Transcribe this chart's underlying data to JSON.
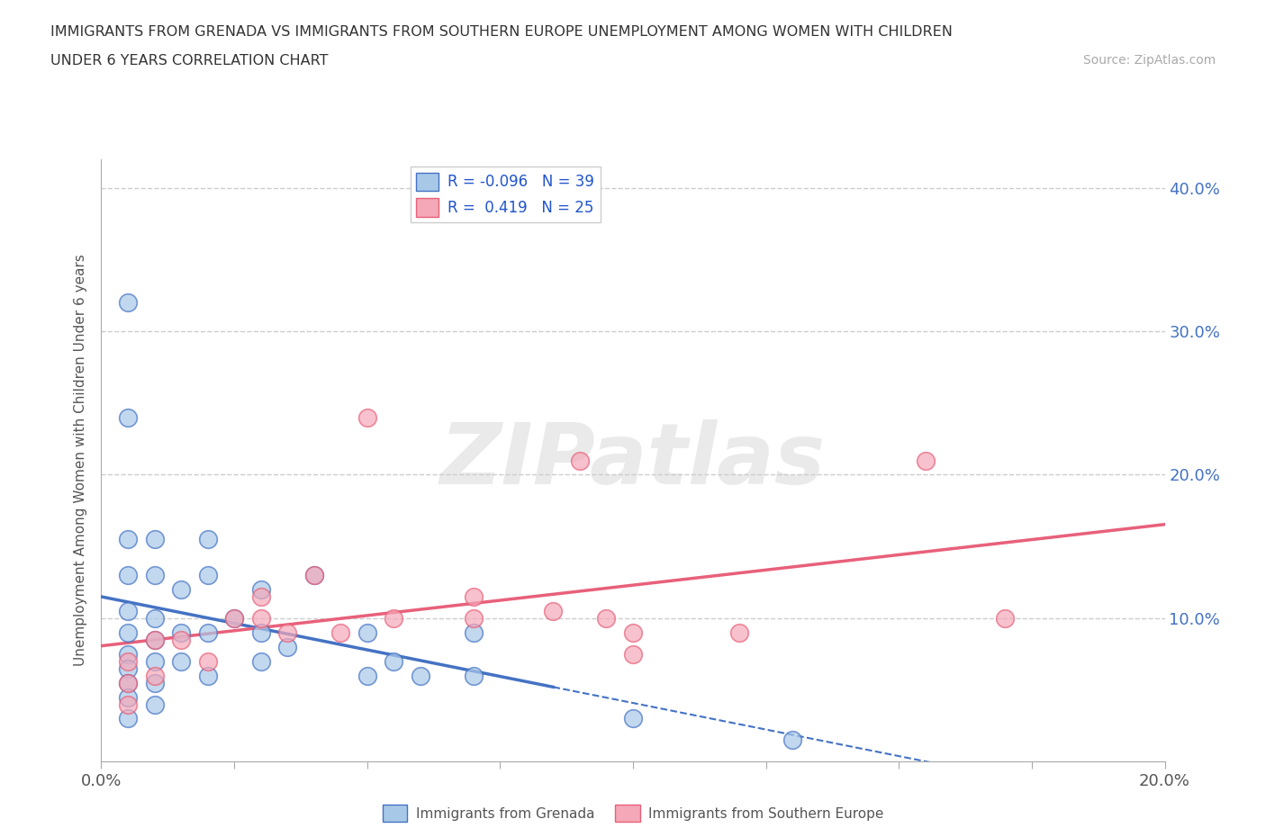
{
  "title_line1": "IMMIGRANTS FROM GRENADA VS IMMIGRANTS FROM SOUTHERN EUROPE UNEMPLOYMENT AMONG WOMEN WITH CHILDREN",
  "title_line2": "UNDER 6 YEARS CORRELATION CHART",
  "source": "Source: ZipAtlas.com",
  "ylabel": "Unemployment Among Women with Children Under 6 years",
  "xlim": [
    0.0,
    0.2
  ],
  "ylim": [
    0.0,
    0.42
  ],
  "grenada_R": -0.096,
  "grenada_N": 39,
  "southern_R": 0.419,
  "southern_N": 25,
  "grenada_color": "#a8c8e8",
  "southern_color": "#f4a8b8",
  "grenada_line_color": "#4472c4",
  "southern_line_color": "#e8607a",
  "grenada_x": [
    0.005,
    0.005,
    0.005,
    0.005,
    0.005,
    0.005,
    0.005,
    0.005,
    0.005,
    0.005,
    0.005,
    0.01,
    0.01,
    0.01,
    0.01,
    0.01,
    0.01,
    0.01,
    0.015,
    0.015,
    0.015,
    0.02,
    0.02,
    0.02,
    0.02,
    0.025,
    0.03,
    0.03,
    0.03,
    0.035,
    0.04,
    0.05,
    0.05,
    0.055,
    0.06,
    0.07,
    0.07,
    0.1,
    0.13
  ],
  "grenada_y": [
    0.32,
    0.24,
    0.155,
    0.13,
    0.105,
    0.09,
    0.075,
    0.065,
    0.055,
    0.045,
    0.03,
    0.155,
    0.13,
    0.1,
    0.085,
    0.07,
    0.055,
    0.04,
    0.12,
    0.09,
    0.07,
    0.155,
    0.13,
    0.09,
    0.06,
    0.1,
    0.12,
    0.09,
    0.07,
    0.08,
    0.13,
    0.09,
    0.06,
    0.07,
    0.06,
    0.09,
    0.06,
    0.03,
    0.015
  ],
  "southern_x": [
    0.005,
    0.005,
    0.005,
    0.01,
    0.01,
    0.015,
    0.02,
    0.025,
    0.03,
    0.03,
    0.035,
    0.04,
    0.045,
    0.05,
    0.055,
    0.07,
    0.07,
    0.085,
    0.09,
    0.095,
    0.1,
    0.1,
    0.12,
    0.155,
    0.17
  ],
  "southern_y": [
    0.07,
    0.055,
    0.04,
    0.085,
    0.06,
    0.085,
    0.07,
    0.1,
    0.115,
    0.1,
    0.09,
    0.13,
    0.09,
    0.24,
    0.1,
    0.115,
    0.1,
    0.105,
    0.21,
    0.1,
    0.09,
    0.075,
    0.09,
    0.21,
    0.1
  ],
  "background_color": "#ffffff",
  "grid_color": "#cccccc",
  "watermark_text": "ZIPatlas"
}
